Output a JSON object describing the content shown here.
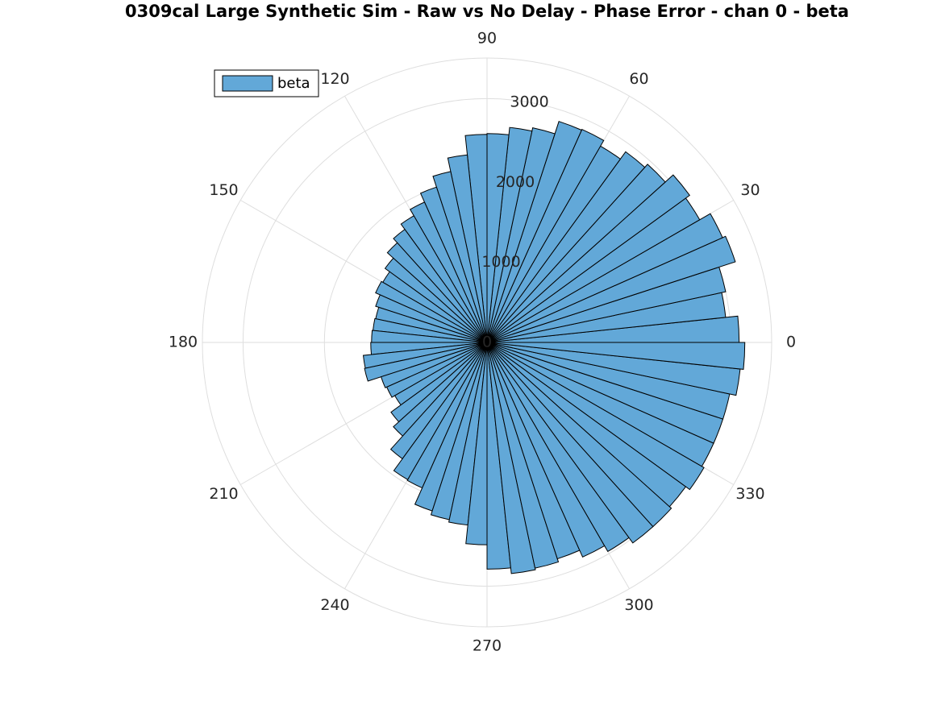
{
  "chart_data": {
    "type": "polar_histogram",
    "title": "0309cal Large Synthetic Sim - Raw vs No Delay - Phase Error - chan 0 - beta",
    "bins": [
      0,
      6,
      12,
      18,
      24,
      30,
      36,
      42,
      48,
      54,
      60,
      66,
      72,
      78,
      84,
      90,
      96,
      102,
      108,
      114,
      120,
      126,
      132,
      138,
      144,
      150,
      156,
      162,
      168,
      174,
      180,
      186,
      192,
      198,
      204,
      210,
      216,
      222,
      228,
      234,
      240,
      246,
      252,
      258,
      264,
      270,
      276,
      282,
      288,
      294,
      300,
      306,
      312,
      318,
      324,
      330,
      336,
      342,
      348,
      354,
      360
    ],
    "series": [
      {
        "name": "beta",
        "color": "#62a8d8",
        "values": [
          3100,
          2950,
          3000,
          3210,
          3170,
          3020,
          3080,
          2950,
          2900,
          2790,
          2870,
          2860,
          2700,
          2660,
          2570,
          2560,
          2320,
          2150,
          2010,
          1890,
          1800,
          1720,
          1650,
          1550,
          1480,
          1500,
          1440,
          1400,
          1410,
          1420,
          1430,
          1530,
          1540,
          1370,
          1350,
          1310,
          1460,
          1550,
          1770,
          1950,
          1960,
          2180,
          2230,
          2260,
          2490,
          2790,
          2860,
          2840,
          2800,
          2890,
          2970,
          3050,
          3050,
          3020,
          3080,
          3050,
          3050,
          3050,
          3130,
          3170
        ]
      }
    ],
    "rlim": [
      0,
      3500
    ],
    "rticks": [
      0,
      1000,
      2000,
      3000
    ],
    "thetaticks": [
      0,
      30,
      60,
      90,
      120,
      150,
      180,
      210,
      240,
      270,
      300,
      330
    ],
    "grid": true,
    "legend": "upper-left"
  }
}
